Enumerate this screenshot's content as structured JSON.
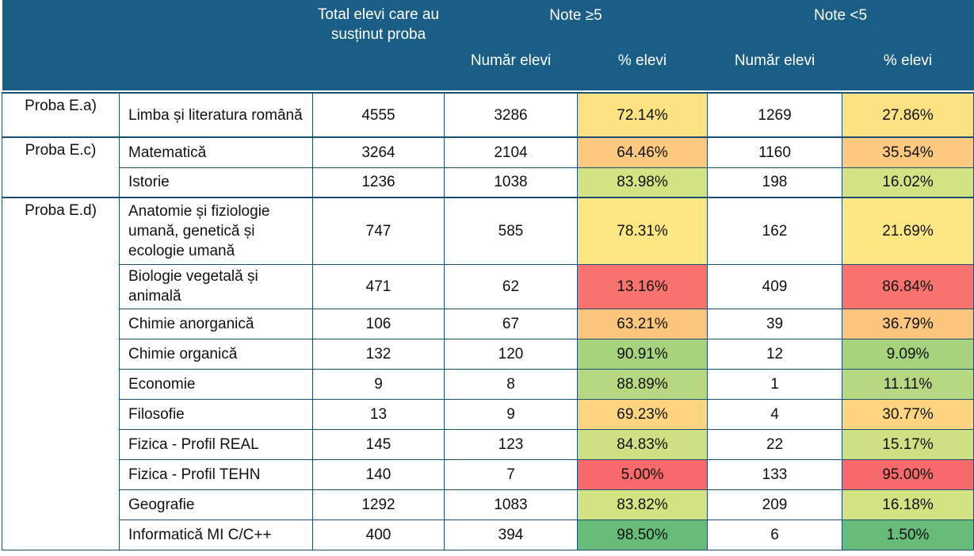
{
  "header": {
    "total_label": "Total elevi care au susținut proba",
    "pass_group": "Note ≥5",
    "fail_group": "Note <5",
    "count_label": "Număr elevi",
    "percent_label": "% elevi"
  },
  "groups": [
    {
      "name": "Proba E.a)",
      "rows": [
        {
          "subject": "Limba și literatura română",
          "total": "4555",
          "pass_count": "3286",
          "pass_pct": "72.14%",
          "fail_count": "1269",
          "fail_pct": "27.86%",
          "color": "#fde283"
        }
      ]
    },
    {
      "name": "Proba E.c)",
      "rows": [
        {
          "subject": "Matematică",
          "total": "3264",
          "pass_count": "2104",
          "pass_pct": "64.46%",
          "fail_count": "1160",
          "fail_pct": "35.54%",
          "color": "#fcc97e"
        },
        {
          "subject": "Istorie",
          "total": "1236",
          "pass_count": "1038",
          "pass_pct": "83.98%",
          "fail_count": "198",
          "fail_pct": "16.02%",
          "color": "#d3e283"
        }
      ]
    },
    {
      "name": "Proba E.d)",
      "rows": [
        {
          "subject": "Anatomie și fiziologie umană, genetică și ecologie umană",
          "total": "747",
          "pass_count": "585",
          "pass_pct": "78.31%",
          "fail_count": "162",
          "fail_pct": "21.69%",
          "color": "#fde784"
        },
        {
          "subject": "Biologie vegetală și animală",
          "total": "471",
          "pass_count": "62",
          "pass_pct": "13.16%",
          "fail_count": "409",
          "fail_pct": "86.84%",
          "color": "#f8736d"
        },
        {
          "subject": "Chimie anorganică",
          "total": "106",
          "pass_count": "67",
          "pass_pct": "63.21%",
          "fail_count": "39",
          "fail_pct": "36.79%",
          "color": "#fcc57d"
        },
        {
          "subject": "Chimie organică",
          "total": "132",
          "pass_count": "120",
          "pass_pct": "90.91%",
          "fail_count": "12",
          "fail_pct": "9.09%",
          "color": "#a7d27e"
        },
        {
          "subject": "Economie",
          "total": "9",
          "pass_count": "8",
          "pass_pct": "88.89%",
          "fail_count": "1",
          "fail_pct": "11.11%",
          "color": "#b7d780"
        },
        {
          "subject": "Filosofie",
          "total": "13",
          "pass_count": "9",
          "pass_pct": "69.23%",
          "fail_count": "4",
          "fail_pct": "30.77%",
          "color": "#fdd481"
        },
        {
          "subject": "Fizica - Profil REAL",
          "total": "145",
          "pass_count": "123",
          "pass_pct": "84.83%",
          "fail_count": "22",
          "fail_pct": "15.17%",
          "color": "#cfe082"
        },
        {
          "subject": "Fizica - Profil TEHN",
          "total": "140",
          "pass_count": "7",
          "pass_pct": "5.00%",
          "fail_count": "133",
          "fail_pct": "95.00%",
          "color": "#f8696b"
        },
        {
          "subject": "Geografie",
          "total": "1292",
          "pass_count": "1083",
          "pass_pct": "83.82%",
          "fail_count": "209",
          "fail_pct": "16.18%",
          "color": "#d3e283"
        },
        {
          "subject": "Informatică MI C/C++",
          "total": "400",
          "pass_count": "394",
          "pass_pct": "98.50%",
          "fail_count": "6",
          "fail_pct": "1.50%",
          "color": "#67bc7a"
        }
      ]
    }
  ]
}
